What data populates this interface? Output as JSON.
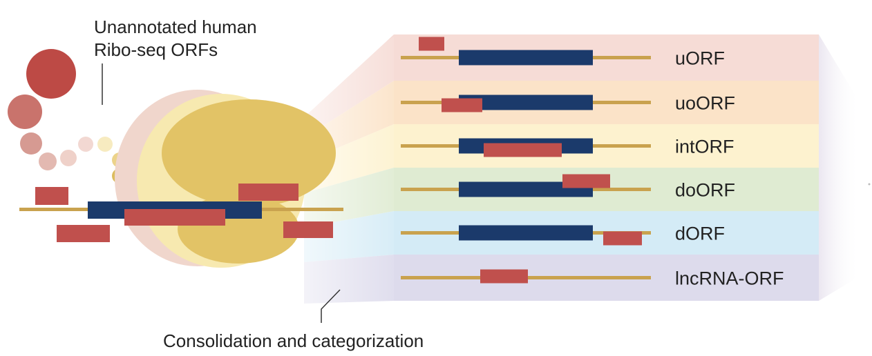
{
  "annotation_top": {
    "line1": "Unannotated human",
    "line2": "Ribo-seq ORFs"
  },
  "annotation_bottom": "Consolidation and categorization",
  "categories": [
    {
      "label": "uORF",
      "band_color": "#f6dcd6"
    },
    {
      "label": "uoORF",
      "band_color": "#fbe3c8"
    },
    {
      "label": "intORF",
      "band_color": "#fdf2cf"
    },
    {
      "label": "doORF",
      "band_color": "#dfebd2"
    },
    {
      "label": "dORF",
      "band_color": "#d4ebf6"
    },
    {
      "label": "lncRNA-ORF",
      "band_color": "#dddbec"
    }
  ],
  "colors": {
    "transcript_line": "#c9a24e",
    "cds_block": "#1b3a6b",
    "orf_block": "#c0504d",
    "ribosome_front": "#e2c366",
    "ribosome_mid": "#f7e9b0",
    "ribosome_back": "#f0d6cc",
    "dot_large": "#bd4a45"
  }
}
